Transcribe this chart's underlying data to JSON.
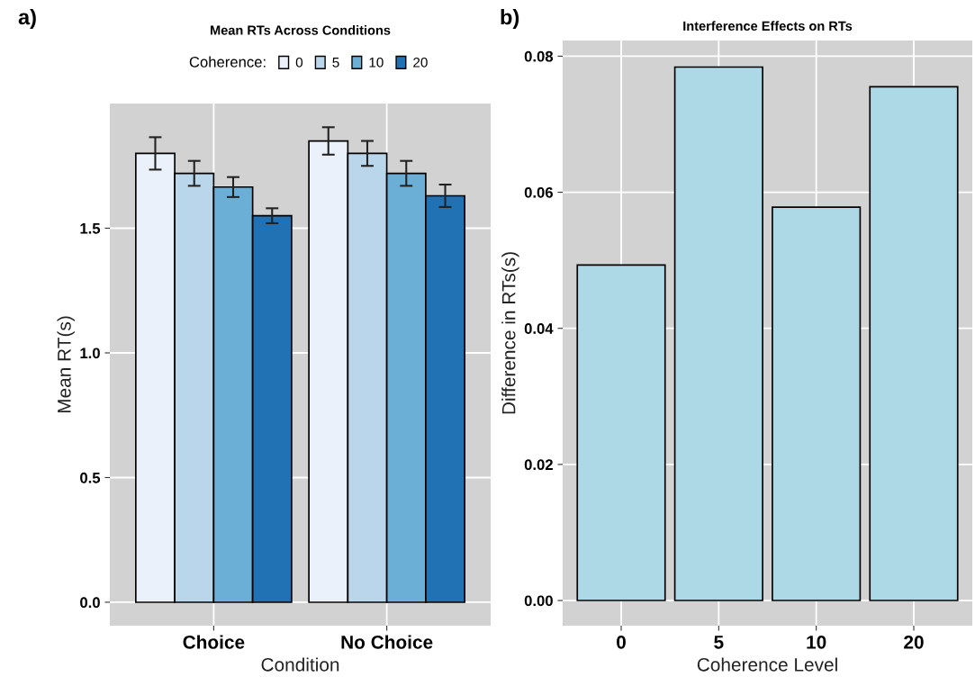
{
  "chart_data": [
    {
      "type": "bar",
      "title": "Mean RTs Across Conditions",
      "xlabel": "Condition",
      "ylabel": "Mean RT(s)",
      "legend_title": "Coherence:",
      "legend": "top",
      "categories": [
        "Choice",
        "No Choice"
      ],
      "series": [
        {
          "name": "0",
          "color": "#eaf1fa",
          "values": [
            1.8,
            1.85
          ],
          "errors": [
            0.065,
            0.055
          ]
        },
        {
          "name": "5",
          "color": "#bad6ea",
          "values": [
            1.72,
            1.8
          ],
          "errors": [
            0.05,
            0.05
          ]
        },
        {
          "name": "10",
          "color": "#6baed6",
          "values": [
            1.665,
            1.72
          ],
          "errors": [
            0.04,
            0.05
          ]
        },
        {
          "name": "20",
          "color": "#2171b5",
          "values": [
            1.55,
            1.63
          ],
          "errors": [
            0.03,
            0.045
          ]
        }
      ],
      "ylim": [
        -0.094,
        2.0
      ],
      "yticks": [
        {
          "value": 0,
          "label": "0.0"
        },
        0.5,
        {
          "value": 1,
          "label": "1.0"
        },
        1.5
      ],
      "grid": true,
      "annotations": [
        "a)"
      ]
    },
    {
      "type": "bar",
      "title": "Interference Effects on RTs",
      "xlabel": "Coherence Level",
      "ylabel": "Difference in RTs(s)",
      "categories": [
        "0",
        "5",
        "10",
        "20"
      ],
      "values": [
        0.0493,
        0.0784,
        0.0578,
        0.0755
      ],
      "color": "#add8e6",
      "ylim": [
        -0.0037,
        0.0823
      ],
      "yticks": [
        {
          "value": 0,
          "label": "0.00"
        },
        {
          "value": 0.02,
          "label": "0.02"
        },
        {
          "value": 0.04,
          "label": "0.04"
        },
        {
          "value": 0.06,
          "label": "0.06"
        },
        {
          "value": 0.08,
          "label": "0.08"
        }
      ],
      "grid": true,
      "annotations": [
        "b)"
      ]
    }
  ]
}
